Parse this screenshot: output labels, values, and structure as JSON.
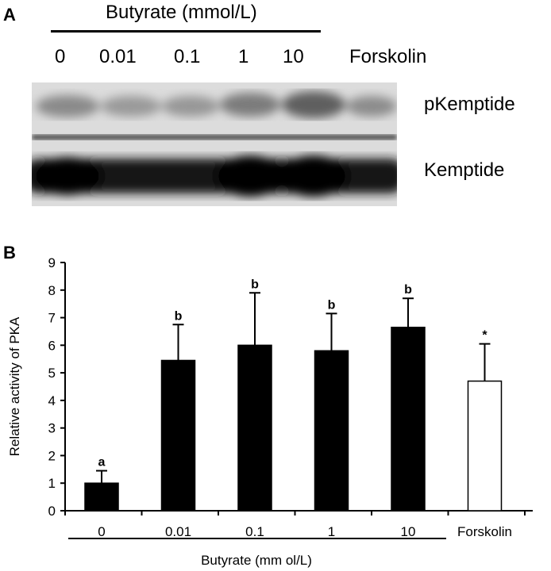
{
  "panel_a": {
    "label": "A",
    "header": "Butyrate (mmol/L)",
    "lanes": [
      "0",
      "0.01",
      "0.1",
      "1",
      "10",
      "Forskolin"
    ],
    "band_labels": [
      "pKemptide",
      "Kemptide"
    ]
  },
  "panel_b": {
    "label": "B"
  },
  "chart_data": {
    "type": "bar",
    "title": "",
    "xlabel": "Butyrate (mm ol/L)",
    "ylabel": "Relative activity of PKA",
    "ylim": [
      0,
      9
    ],
    "yticks": [
      "0",
      "1",
      "2",
      "3",
      "4",
      "5",
      "6",
      "7",
      "8",
      "9"
    ],
    "categories": [
      "0",
      "0.01",
      "0.1",
      "1",
      "10",
      "Forskolin"
    ],
    "values": [
      1.0,
      5.45,
      6.0,
      5.8,
      6.65,
      4.7
    ],
    "errors": [
      0.45,
      1.3,
      1.9,
      1.35,
      1.05,
      1.35
    ],
    "annotations": [
      "a",
      "b",
      "b",
      "b",
      "b",
      "*"
    ],
    "fills": [
      "#000000",
      "#000000",
      "#000000",
      "#000000",
      "#000000",
      "#ffffff"
    ],
    "grid": false,
    "legend": "none"
  }
}
